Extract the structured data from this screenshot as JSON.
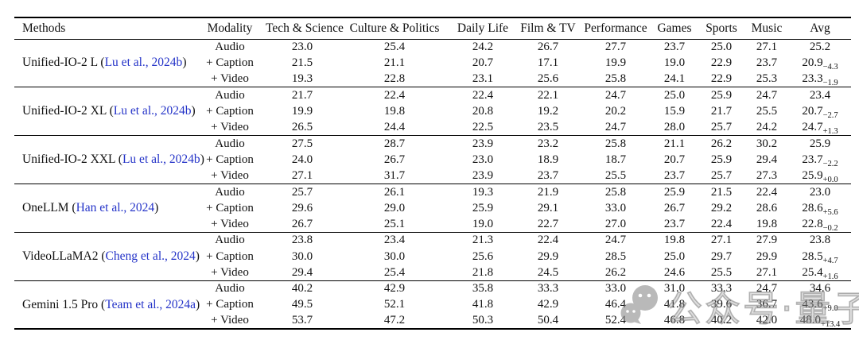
{
  "table": {
    "headers": [
      "Methods",
      "Modality",
      "Tech & Science",
      "Culture & Politics",
      "Daily Life",
      "Film & TV",
      "Performance",
      "Games",
      "Sports",
      "Music",
      "Avg"
    ],
    "groups": [
      {
        "name": "Unified-IO-2 L",
        "citation": "Lu et al., 2024b",
        "rows": [
          {
            "modality": "Audio",
            "values": [
              "23.0",
              "25.4",
              "24.2",
              "26.7",
              "27.7",
              "23.7",
              "25.0",
              "27.1"
            ],
            "avg": "25.2",
            "avg_delta": ""
          },
          {
            "modality": "+ Caption",
            "values": [
              "21.5",
              "21.1",
              "20.7",
              "17.1",
              "19.9",
              "19.0",
              "22.9",
              "23.7"
            ],
            "avg": "20.9",
            "avg_delta": "−4.3"
          },
          {
            "modality": "+ Video",
            "values": [
              "19.3",
              "22.8",
              "23.1",
              "25.6",
              "25.8",
              "24.1",
              "22.9",
              "25.3"
            ],
            "avg": "23.3",
            "avg_delta": "−1.9"
          }
        ]
      },
      {
        "name": "Unified-IO-2 XL",
        "citation": "Lu et al., 2024b",
        "rows": [
          {
            "modality": "Audio",
            "values": [
              "21.7",
              "22.4",
              "22.4",
              "22.1",
              "24.7",
              "25.0",
              "25.9",
              "24.7"
            ],
            "avg": "23.4",
            "avg_delta": ""
          },
          {
            "modality": "+ Caption",
            "values": [
              "19.9",
              "19.8",
              "20.8",
              "19.2",
              "20.2",
              "15.9",
              "21.7",
              "25.5"
            ],
            "avg": "20.7",
            "avg_delta": "−2.7"
          },
          {
            "modality": "+ Video",
            "values": [
              "26.5",
              "24.4",
              "22.5",
              "23.5",
              "24.7",
              "28.0",
              "25.7",
              "24.2"
            ],
            "avg": "24.7",
            "avg_delta": "+1.3"
          }
        ]
      },
      {
        "name": "Unified-IO-2 XXL",
        "citation": "Lu et al., 2024b",
        "rows": [
          {
            "modality": "Audio",
            "values": [
              "27.5",
              "28.7",
              "23.9",
              "23.2",
              "25.8",
              "21.1",
              "26.2",
              "30.2"
            ],
            "avg": "25.9",
            "avg_delta": ""
          },
          {
            "modality": "+ Caption",
            "values": [
              "24.0",
              "26.7",
              "23.0",
              "18.9",
              "18.7",
              "20.7",
              "25.9",
              "29.4"
            ],
            "avg": "23.7",
            "avg_delta": "−2.2"
          },
          {
            "modality": "+ Video",
            "values": [
              "27.1",
              "31.7",
              "23.9",
              "23.7",
              "25.5",
              "23.7",
              "25.7",
              "27.3"
            ],
            "avg": "25.9",
            "avg_delta": "+0.0"
          }
        ]
      },
      {
        "name": "OneLLM",
        "citation": "Han et al., 2024",
        "rows": [
          {
            "modality": "Audio",
            "values": [
              "25.7",
              "26.1",
              "19.3",
              "21.9",
              "25.8",
              "25.9",
              "21.5",
              "22.4"
            ],
            "avg": "23.0",
            "avg_delta": ""
          },
          {
            "modality": "+ Caption",
            "values": [
              "29.6",
              "29.0",
              "25.9",
              "29.1",
              "33.0",
              "26.7",
              "29.2",
              "28.6"
            ],
            "avg": "28.6",
            "avg_delta": "+5.6"
          },
          {
            "modality": "+ Video",
            "values": [
              "26.7",
              "25.1",
              "19.0",
              "22.7",
              "27.0",
              "23.7",
              "22.4",
              "19.8"
            ],
            "avg": "22.8",
            "avg_delta": "−0.2"
          }
        ]
      },
      {
        "name": "VideoLLaMA2",
        "citation": "Cheng et al., 2024",
        "rows": [
          {
            "modality": "Audio",
            "values": [
              "23.8",
              "23.4",
              "21.3",
              "22.4",
              "24.7",
              "19.8",
              "27.1",
              "27.9"
            ],
            "avg": "23.8",
            "avg_delta": ""
          },
          {
            "modality": "+ Caption",
            "values": [
              "30.0",
              "30.0",
              "25.6",
              "29.9",
              "28.5",
              "25.0",
              "29.7",
              "29.9"
            ],
            "avg": "28.5",
            "avg_delta": "+4.7"
          },
          {
            "modality": "+ Video",
            "values": [
              "29.4",
              "25.4",
              "21.8",
              "24.5",
              "26.2",
              "24.6",
              "25.5",
              "27.1"
            ],
            "avg": "25.4",
            "avg_delta": "+1.6"
          }
        ]
      },
      {
        "name": "Gemini 1.5 Pro",
        "citation": "Team et al., 2024a",
        "rows": [
          {
            "modality": "Audio",
            "values": [
              "40.2",
              "42.9",
              "35.8",
              "33.3",
              "33.0",
              "31.0",
              "33.3",
              "24.7"
            ],
            "avg": "34.6",
            "avg_delta": ""
          },
          {
            "modality": "+ Caption",
            "values": [
              "49.5",
              "52.1",
              "41.8",
              "42.9",
              "46.4",
              "41.8",
              "39.6",
              "36.7"
            ],
            "avg": "43.6",
            "avg_delta": "+9.0"
          },
          {
            "modality": "+ Video",
            "values": [
              "53.7",
              "47.2",
              "50.3",
              "50.4",
              "52.4",
              "46.8",
              "40.2",
              "42.0"
            ],
            "avg": "48.0",
            "avg_delta": "+13.4"
          }
        ]
      }
    ]
  },
  "watermark": {
    "icon": "wechat-icon",
    "text": "公众号·量子位",
    "color": "#8a8a8a"
  },
  "colors": {
    "citation_link": "#2433c8",
    "rule": "#000000",
    "text": "#111111",
    "background": "#ffffff"
  }
}
